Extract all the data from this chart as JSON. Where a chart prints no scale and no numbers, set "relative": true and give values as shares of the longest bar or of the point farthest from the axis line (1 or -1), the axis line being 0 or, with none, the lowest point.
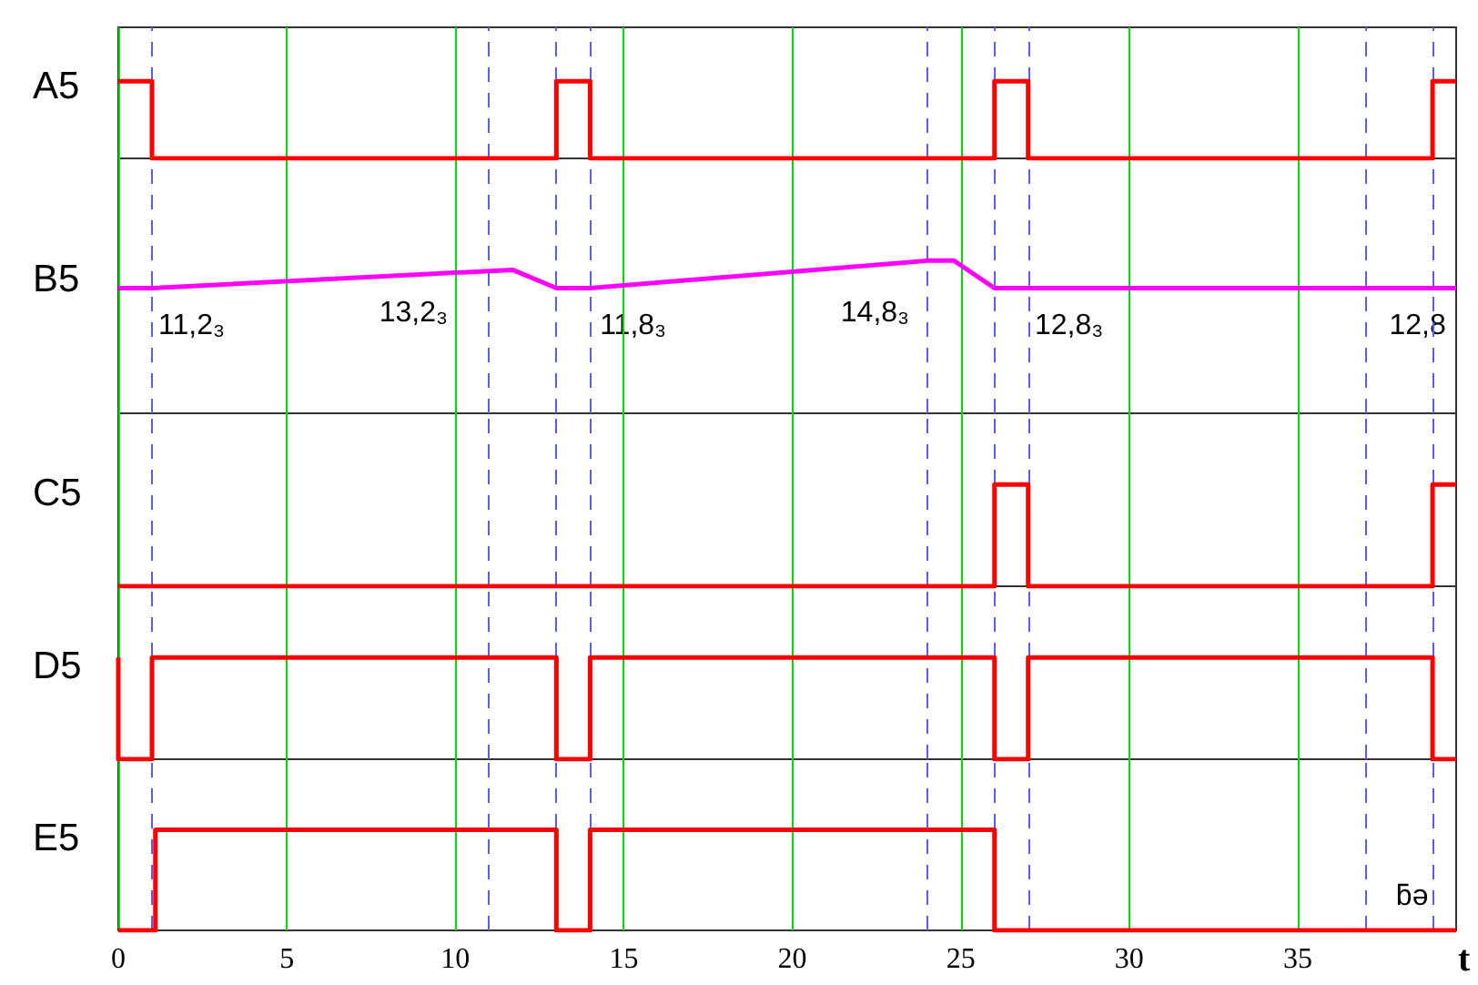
{
  "chart_data": [
    {
      "type": "step",
      "ylabel": "A5",
      "relative": true,
      "color": "#ff0000",
      "x": [
        0,
        1,
        13,
        14,
        26,
        27,
        39,
        39.7
      ],
      "values": [
        1,
        0,
        1,
        0,
        1,
        0,
        1,
        1
      ],
      "xlim": [
        0,
        39.7
      ],
      "xticks": [
        0,
        5,
        10,
        15,
        20,
        25,
        30,
        35
      ],
      "grid": "x",
      "tick_labels": false,
      "ref_lines": [
        {
          "axis": "x",
          "value": 1,
          "color": "#5a5aff",
          "line_style": "dashed"
        },
        {
          "axis": "x",
          "value": 11,
          "color": "#5a5aff",
          "line_style": "dashed"
        },
        {
          "axis": "x",
          "value": 13,
          "color": "#5a5aff",
          "line_style": "dashed"
        },
        {
          "axis": "x",
          "value": 14,
          "color": "#5a5aff",
          "line_style": "dashed"
        },
        {
          "axis": "x",
          "value": 24,
          "color": "#5a5aff",
          "line_style": "dashed"
        },
        {
          "axis": "x",
          "value": 26,
          "color": "#5a5aff",
          "line_style": "dashed"
        },
        {
          "axis": "x",
          "value": 27,
          "color": "#5a5aff",
          "line_style": "dashed"
        },
        {
          "axis": "x",
          "value": 37,
          "color": "#5a5aff",
          "line_style": "dashed"
        },
        {
          "axis": "x",
          "value": 39,
          "color": "#5a5aff",
          "line_style": "dashed"
        }
      ]
    },
    {
      "type": "line",
      "ylabel": "B5",
      "relative": true,
      "color": "#ff00ff",
      "x": [
        0,
        1,
        11.7,
        13,
        14,
        24,
        24.8,
        26,
        39.7
      ],
      "values": [
        0.82,
        0.82,
        0.94,
        0.82,
        0.82,
        1,
        1,
        0.82,
        0.82
      ],
      "annotations": [
        "11,2₃",
        "13,2₃",
        "11,8₃",
        "14,8₃",
        "12,8₃",
        "12,8"
      ],
      "xlim": [
        0,
        39.7
      ],
      "xticks": [
        0,
        5,
        10,
        15,
        20,
        25,
        30,
        35
      ],
      "grid": "x",
      "tick_labels": false,
      "ref_lines": [
        {
          "axis": "x",
          "value": 1,
          "color": "#5a5aff",
          "line_style": "dashed"
        },
        {
          "axis": "x",
          "value": 11,
          "color": "#5a5aff",
          "line_style": "dashed"
        },
        {
          "axis": "x",
          "value": 13,
          "color": "#5a5aff",
          "line_style": "dashed"
        },
        {
          "axis": "x",
          "value": 14,
          "color": "#5a5aff",
          "line_style": "dashed"
        },
        {
          "axis": "x",
          "value": 24,
          "color": "#5a5aff",
          "line_style": "dashed"
        },
        {
          "axis": "x",
          "value": 26,
          "color": "#5a5aff",
          "line_style": "dashed"
        },
        {
          "axis": "x",
          "value": 27,
          "color": "#5a5aff",
          "line_style": "dashed"
        },
        {
          "axis": "x",
          "value": 37,
          "color": "#5a5aff",
          "line_style": "dashed"
        },
        {
          "axis": "x",
          "value": 39,
          "color": "#5a5aff",
          "line_style": "dashed"
        }
      ]
    },
    {
      "type": "step",
      "ylabel": "C5",
      "relative": true,
      "color": "#ff0000",
      "x": [
        0,
        26,
        27,
        39,
        39.7
      ],
      "values": [
        0,
        1,
        0,
        1,
        1
      ],
      "xlim": [
        0,
        39.7
      ],
      "xticks": [
        0,
        5,
        10,
        15,
        20,
        25,
        30,
        35
      ],
      "grid": "x",
      "tick_labels": false,
      "ref_lines": [
        {
          "axis": "x",
          "value": 1,
          "color": "#5a5aff",
          "line_style": "dashed"
        },
        {
          "axis": "x",
          "value": 11,
          "color": "#5a5aff",
          "line_style": "dashed"
        },
        {
          "axis": "x",
          "value": 13,
          "color": "#5a5aff",
          "line_style": "dashed"
        },
        {
          "axis": "x",
          "value": 14,
          "color": "#5a5aff",
          "line_style": "dashed"
        },
        {
          "axis": "x",
          "value": 24,
          "color": "#5a5aff",
          "line_style": "dashed"
        },
        {
          "axis": "x",
          "value": 26,
          "color": "#5a5aff",
          "line_style": "dashed"
        },
        {
          "axis": "x",
          "value": 27,
          "color": "#5a5aff",
          "line_style": "dashed"
        },
        {
          "axis": "x",
          "value": 37,
          "color": "#5a5aff",
          "line_style": "dashed"
        },
        {
          "axis": "x",
          "value": 39,
          "color": "#5a5aff",
          "line_style": "dashed"
        }
      ]
    },
    {
      "type": "step",
      "ylabel": "D5",
      "relative": true,
      "color": "#ff0000",
      "x": [
        0,
        0,
        1,
        13,
        14,
        26,
        27,
        39,
        39.7
      ],
      "values": [
        1,
        0,
        1,
        0,
        1,
        0,
        1,
        0,
        0
      ],
      "xlim": [
        0,
        39.7
      ],
      "xticks": [
        0,
        5,
        10,
        15,
        20,
        25,
        30,
        35
      ],
      "grid": "x",
      "tick_labels": false,
      "ref_lines": [
        {
          "axis": "x",
          "value": 1,
          "color": "#5a5aff",
          "line_style": "dashed"
        },
        {
          "axis": "x",
          "value": 11,
          "color": "#5a5aff",
          "line_style": "dashed"
        },
        {
          "axis": "x",
          "value": 13,
          "color": "#5a5aff",
          "line_style": "dashed"
        },
        {
          "axis": "x",
          "value": 14,
          "color": "#5a5aff",
          "line_style": "dashed"
        },
        {
          "axis": "x",
          "value": 24,
          "color": "#5a5aff",
          "line_style": "dashed"
        },
        {
          "axis": "x",
          "value": 26,
          "color": "#5a5aff",
          "line_style": "dashed"
        },
        {
          "axis": "x",
          "value": 27,
          "color": "#5a5aff",
          "line_style": "dashed"
        },
        {
          "axis": "x",
          "value": 37,
          "color": "#5a5aff",
          "line_style": "dashed"
        },
        {
          "axis": "x",
          "value": 39,
          "color": "#5a5aff",
          "line_style": "dashed"
        }
      ]
    },
    {
      "type": "step",
      "ylabel": "E5",
      "xlabel": "t",
      "relative": true,
      "color": "#ff0000",
      "x": [
        0,
        1.1,
        13,
        14,
        26,
        39.7
      ],
      "values": [
        0,
        1,
        0,
        1,
        0,
        0
      ],
      "xlim": [
        0,
        39.7
      ],
      "xticks": [
        0,
        5,
        10,
        15,
        20,
        25,
        30,
        35
      ],
      "grid": "x",
      "tick_labels": "x",
      "annotations": [
        "ƃə"
      ],
      "ref_lines": [
        {
          "axis": "x",
          "value": 1,
          "color": "#5a5aff",
          "line_style": "dashed"
        },
        {
          "axis": "x",
          "value": 11,
          "color": "#5a5aff",
          "line_style": "dashed"
        },
        {
          "axis": "x",
          "value": 13,
          "color": "#5a5aff",
          "line_style": "dashed"
        },
        {
          "axis": "x",
          "value": 14,
          "color": "#5a5aff",
          "line_style": "dashed"
        },
        {
          "axis": "x",
          "value": 24,
          "color": "#5a5aff",
          "line_style": "dashed"
        },
        {
          "axis": "x",
          "value": 26,
          "color": "#5a5aff",
          "line_style": "dashed"
        },
        {
          "axis": "x",
          "value": 27,
          "color": "#5a5aff",
          "line_style": "dashed"
        },
        {
          "axis": "x",
          "value": 37,
          "color": "#5a5aff",
          "line_style": "dashed"
        },
        {
          "axis": "x",
          "value": 39,
          "color": "#5a5aff",
          "line_style": "dashed"
        }
      ]
    }
  ]
}
